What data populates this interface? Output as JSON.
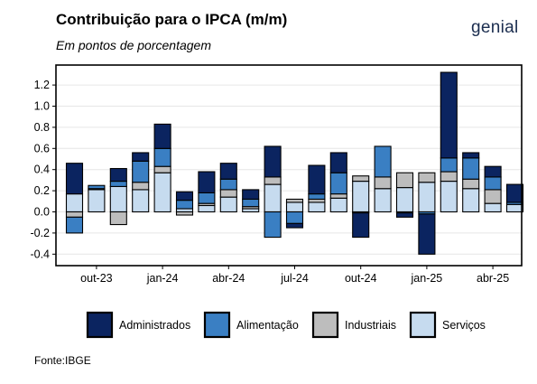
{
  "header": {
    "title": "Contribuição para o IPCA (m/m)",
    "subtitle": "Em pontos de porcentagem",
    "brand": "genial"
  },
  "footer": {
    "source": "Fonte:IBGE"
  },
  "chart_data": {
    "type": "bar",
    "stacked": true,
    "title": "Contribuição para o IPCA (m/m)",
    "subtitle": "Em pontos de porcentagem",
    "xlabel": "",
    "ylabel": "",
    "ylim": [
      -0.45,
      1.35
    ],
    "yticks": [
      -0.4,
      -0.2,
      0.0,
      0.2,
      0.4,
      0.6,
      0.8,
      1.0,
      1.2
    ],
    "grid": true,
    "legend_position": "bottom",
    "categories": [
      "set-23",
      "out-23",
      "nov-23",
      "dez-23",
      "jan-24",
      "fev-24",
      "mar-24",
      "abr-24",
      "mai-24",
      "jun-24",
      "jul-24",
      "ago-24",
      "set-24",
      "out-24",
      "nov-24",
      "dez-24",
      "jan-25",
      "fev-25",
      "mar-25",
      "abr-25",
      "mai-25"
    ],
    "tick_labels": [
      {
        "index": 1,
        "label": "out-23"
      },
      {
        "index": 4,
        "label": "jan-24"
      },
      {
        "index": 7,
        "label": "abr-24"
      },
      {
        "index": 10,
        "label": "jul-24"
      },
      {
        "index": 13,
        "label": "out-24"
      },
      {
        "index": 16,
        "label": "jan-25"
      },
      {
        "index": 19,
        "label": "abr-25"
      }
    ],
    "series": [
      {
        "name": "Serviços",
        "color": "#c6dbef",
        "values": [
          0.17,
          0.21,
          0.24,
          0.21,
          0.37,
          0.03,
          0.06,
          0.14,
          0.03,
          0.26,
          0.09,
          0.09,
          0.13,
          0.29,
          0.22,
          0.23,
          0.28,
          0.29,
          0.22,
          0.08,
          0.07
        ]
      },
      {
        "name": "Industriais",
        "color": "#bdbdbd",
        "values": [
          -0.05,
          0.01,
          -0.12,
          0.07,
          0.06,
          -0.03,
          0.02,
          0.07,
          0.02,
          0.07,
          0.03,
          0.03,
          0.04,
          0.05,
          0.11,
          0.14,
          0.09,
          0.09,
          0.09,
          0.13,
          0.0
        ]
      },
      {
        "name": "Alimentação",
        "color": "#3a7fc3",
        "values": [
          -0.15,
          0.03,
          0.05,
          0.2,
          0.17,
          0.08,
          0.1,
          0.1,
          0.07,
          -0.24,
          -0.11,
          0.05,
          0.2,
          -0.01,
          0.29,
          -0.01,
          -0.02,
          0.13,
          0.2,
          0.12,
          0.02
        ]
      },
      {
        "name": "Administrados",
        "color": "#0b2460",
        "values": [
          0.29,
          0.0,
          0.12,
          0.08,
          0.23,
          0.08,
          0.2,
          0.15,
          0.09,
          0.29,
          -0.04,
          0.27,
          0.19,
          -0.23,
          0.0,
          -0.04,
          -0.38,
          0.81,
          0.05,
          0.1,
          0.17
        ]
      }
    ]
  }
}
